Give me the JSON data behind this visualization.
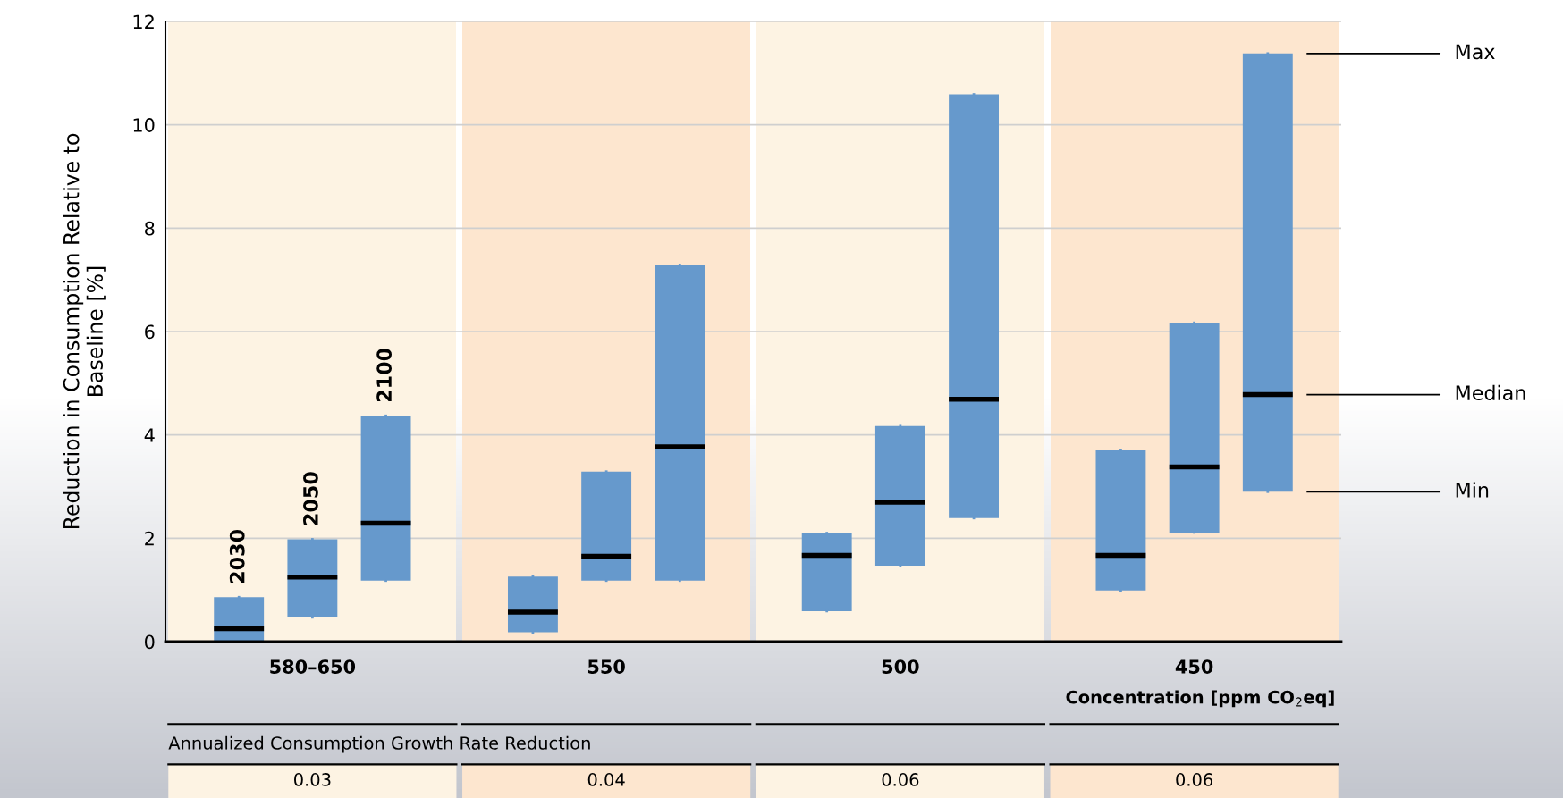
{
  "chart_data": {
    "type": "box",
    "ylabel": "Reduction in Consumption Relative to\nBaseline [%]",
    "xlabel": "Concentration [ppm CO$_{2}$eq]",
    "categories": [
      "580–650",
      "550",
      "500",
      "450"
    ],
    "series": [
      {
        "name": "2030",
        "color": "#6699cc",
        "boxes": [
          {
            "low": 0,
            "q1": 0,
            "median": 0.25,
            "q3": 0.86,
            "high": 0.86
          },
          {
            "low": 0.18,
            "q1": 0.18,
            "median": 0.57,
            "q3": 1.26,
            "high": 1.26
          },
          {
            "low": 0.59,
            "q1": 0.59,
            "median": 1.67,
            "q3": 2.1,
            "high": 2.1
          },
          {
            "low": 0.99,
            "q1": 0.99,
            "median": 1.67,
            "q3": 3.7,
            "high": 3.7
          }
        ]
      },
      {
        "name": "2050",
        "color": "#6699cc",
        "boxes": [
          {
            "low": 0.47,
            "q1": 0.47,
            "median": 1.25,
            "q3": 1.98,
            "high": 1.98
          },
          {
            "low": 1.18,
            "q1": 1.18,
            "median": 1.65,
            "q3": 3.29,
            "high": 3.29
          },
          {
            "low": 1.47,
            "q1": 1.47,
            "median": 2.7,
            "q3": 4.17,
            "high": 4.17
          },
          {
            "low": 2.11,
            "q1": 2.11,
            "median": 3.38,
            "q3": 6.17,
            "high": 6.17
          }
        ]
      },
      {
        "name": "2100",
        "color": "#6699cc",
        "boxes": [
          {
            "low": 1.18,
            "q1": 1.18,
            "median": 2.29,
            "q3": 4.37,
            "high": 4.37
          },
          {
            "low": 1.18,
            "q1": 1.18,
            "median": 3.77,
            "q3": 7.29,
            "high": 7.29
          },
          {
            "low": 2.39,
            "q1": 2.39,
            "median": 4.69,
            "q3": 10.59,
            "high": 10.59
          },
          {
            "low": 2.9,
            "q1": 2.9,
            "median": 4.78,
            "q3": 11.38,
            "high": 11.38
          }
        ]
      }
    ],
    "ylim": [
      0,
      12
    ],
    "yticks": [
      0,
      2,
      4,
      6,
      8,
      10,
      12
    ],
    "grid": "y",
    "legend": false,
    "annotations": [
      "Max",
      "Median",
      "Min",
      "Annualized Consumption Growth Rate Reduction",
      "0.03",
      "0.04",
      "0.06",
      "0.06"
    ]
  }
}
